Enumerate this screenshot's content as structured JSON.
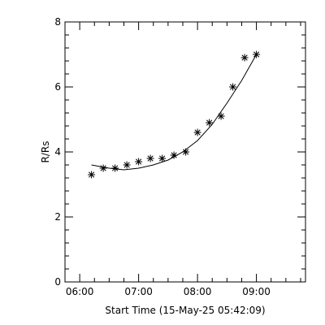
{
  "chart_data": {
    "type": "scatter",
    "xlabel": "Start Time (15-May-25 05:42:09)",
    "ylabel": "R/Rs",
    "ylim": [
      0,
      8
    ],
    "xlim": [
      "05:45",
      "09:50"
    ],
    "x_ticks": [
      "06:00",
      "07:00",
      "08:00",
      "09:00"
    ],
    "y_ticks": [
      "0",
      "2",
      "4",
      "6",
      "8"
    ],
    "grid": false,
    "series": [
      {
        "marker": "asterisk",
        "x": [
          "06:12",
          "06:24",
          "06:36",
          "06:48",
          "07:00",
          "07:12",
          "07:24",
          "07:36",
          "07:48",
          "08:00",
          "08:12",
          "08:24",
          "08:36",
          "08:48",
          "09:00"
        ],
        "y": [
          3.3,
          3.5,
          3.5,
          3.6,
          3.7,
          3.8,
          3.8,
          3.9,
          4.0,
          4.6,
          4.9,
          5.1,
          6.0,
          6.9,
          7.0
        ]
      },
      {
        "style": "line",
        "x": [
          "06:12",
          "06:30",
          "06:45",
          "07:00",
          "07:15",
          "07:30",
          "07:45",
          "08:00",
          "08:15",
          "08:30",
          "08:45",
          "09:00"
        ],
        "y": [
          3.6,
          3.5,
          3.45,
          3.5,
          3.6,
          3.75,
          4.0,
          4.35,
          4.85,
          5.5,
          6.2,
          7.0
        ]
      }
    ]
  }
}
